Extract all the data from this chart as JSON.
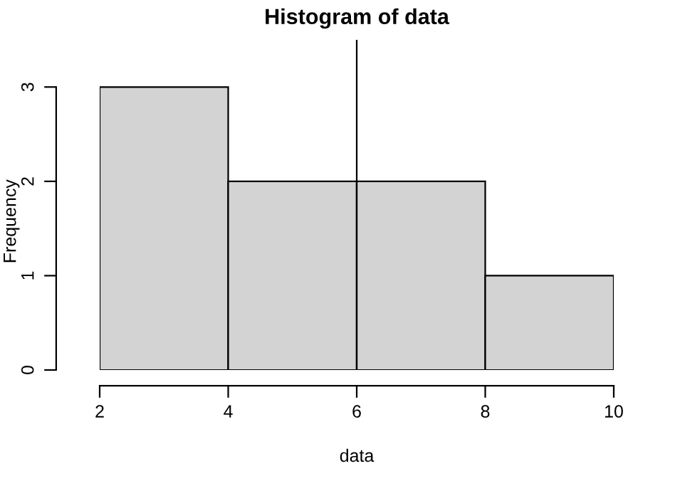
{
  "chart_data": {
    "type": "histogram",
    "title": "Histogram of data",
    "xlabel": "data",
    "ylabel": "Frequency",
    "bins": [
      2,
      4,
      6,
      8,
      10
    ],
    "values": [
      3,
      2,
      2,
      1
    ],
    "color": "#d3d3d3",
    "xlim": [
      2,
      10
    ],
    "ylim": [
      0,
      3.5
    ],
    "xticks": [
      2,
      4,
      6,
      8,
      10
    ],
    "yticks": [
      0,
      1,
      2,
      3
    ],
    "ref_lines": [
      {
        "axis": "x",
        "value": 6,
        "color": "#000000"
      }
    ],
    "grid": false,
    "legend": false
  }
}
